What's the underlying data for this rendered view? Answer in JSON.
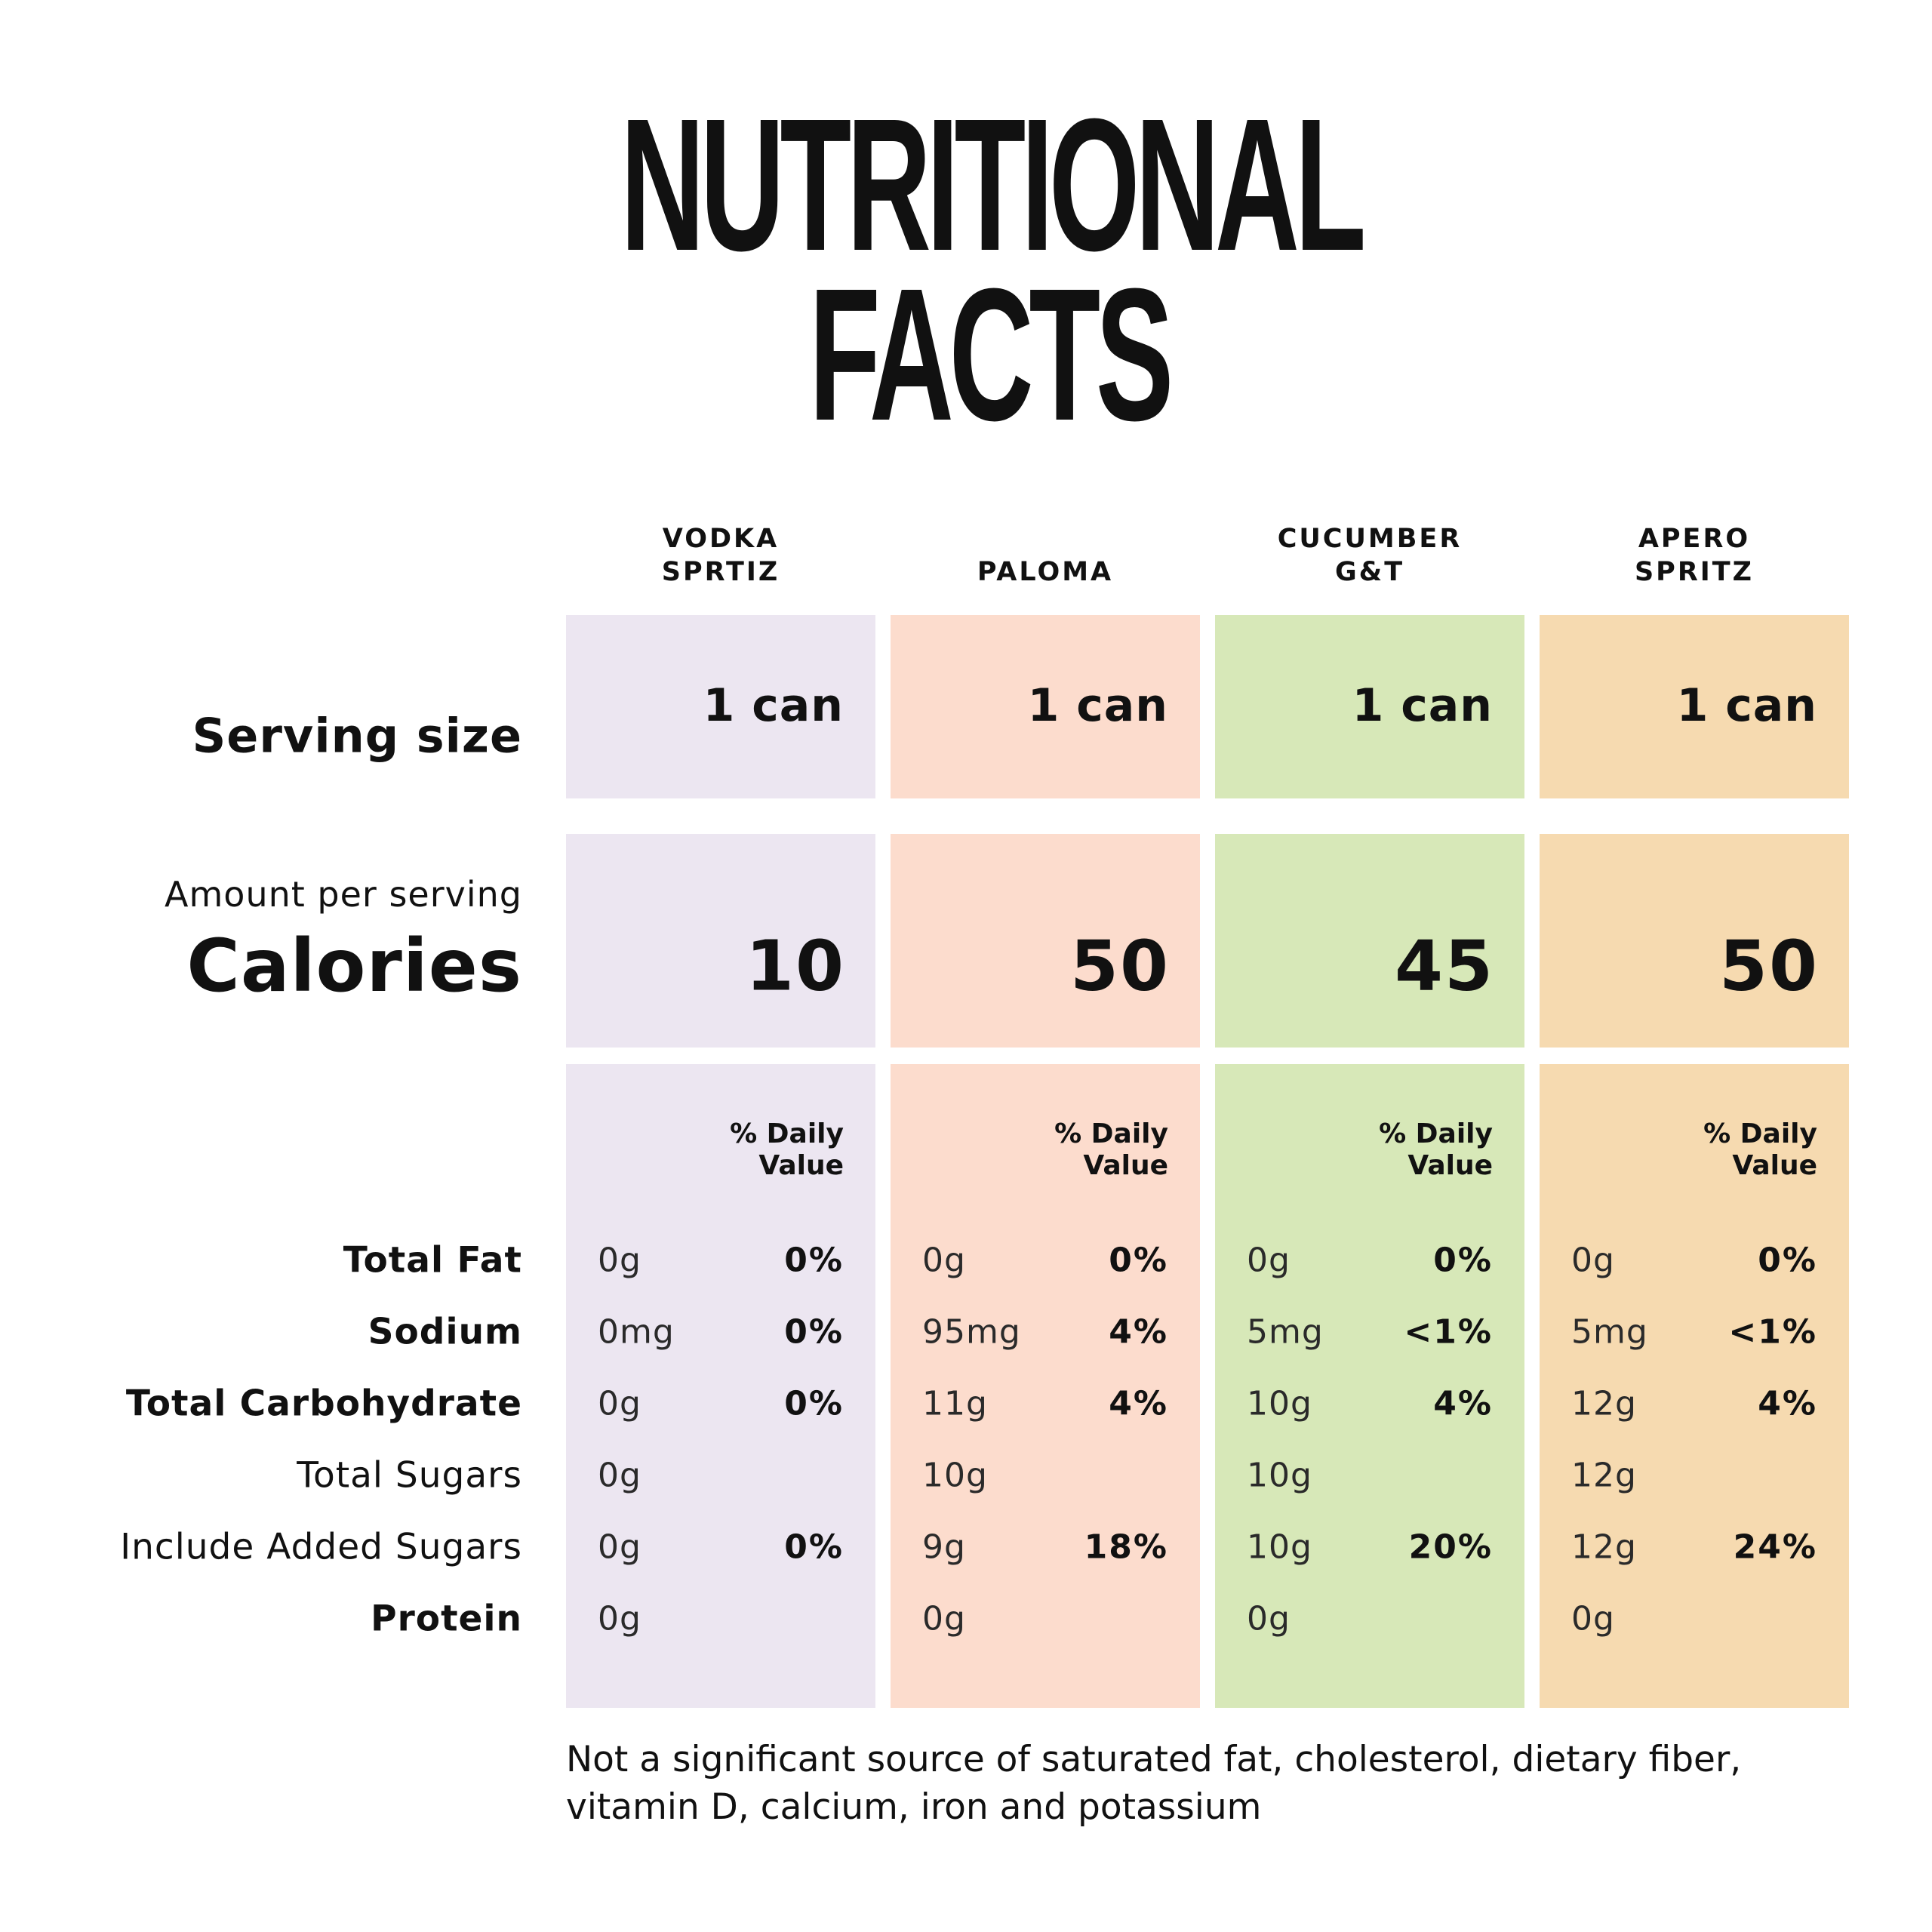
{
  "title": {
    "line1": "NUTRITIONAL",
    "line2": "FACTS"
  },
  "labels": {
    "serving_size": "Serving size",
    "amount_per_serving": "Amount per serving",
    "calories": "Calories"
  },
  "nutrients": [
    {
      "label": "Total Fat",
      "weight": "bold"
    },
    {
      "label": "Sodium",
      "weight": "bold"
    },
    {
      "label": "Total Carbohydrate",
      "weight": "bold"
    },
    {
      "label": "Total Sugars",
      "weight": "regular"
    },
    {
      "label": "Include Added Sugars",
      "weight": "regular"
    },
    {
      "label": "Protein",
      "weight": "bold"
    }
  ],
  "columns": [
    {
      "name_line1": "VODKA",
      "name_line2": "SPRTIZ",
      "color": "#ece6f1",
      "serving": "1 can",
      "calories": "10",
      "dv_header_line1": "% Daily",
      "dv_header_line2": "Value",
      "rows": [
        {
          "amount": "0g",
          "percent": "0%"
        },
        {
          "amount": "0mg",
          "percent": "0%"
        },
        {
          "amount": "0g",
          "percent": "0%"
        },
        {
          "amount": "0g",
          "percent": ""
        },
        {
          "amount": "0g",
          "percent": "0%"
        },
        {
          "amount": "0g",
          "percent": ""
        }
      ]
    },
    {
      "name_line1": "",
      "name_line2": "PALOMA",
      "color": "#fcdccd",
      "serving": "1 can",
      "calories": "50",
      "dv_header_line1": "% Daily",
      "dv_header_line2": "Value",
      "rows": [
        {
          "amount": "0g",
          "percent": "0%"
        },
        {
          "amount": "95mg",
          "percent": "4%"
        },
        {
          "amount": "11g",
          "percent": "4%"
        },
        {
          "amount": "10g",
          "percent": ""
        },
        {
          "amount": "9g",
          "percent": "18%"
        },
        {
          "amount": "0g",
          "percent": ""
        }
      ]
    },
    {
      "name_line1": "CUCUMBER",
      "name_line2": "G&T",
      "color": "#d7e8b8",
      "serving": "1 can",
      "calories": "45",
      "dv_header_line1": "% Daily",
      "dv_header_line2": "Value",
      "rows": [
        {
          "amount": "0g",
          "percent": "0%"
        },
        {
          "amount": "5mg",
          "percent": "<1%"
        },
        {
          "amount": "10g",
          "percent": "4%"
        },
        {
          "amount": "10g",
          "percent": ""
        },
        {
          "amount": "10g",
          "percent": "20%"
        },
        {
          "amount": "0g",
          "percent": ""
        }
      ]
    },
    {
      "name_line1": "APERO",
      "name_line2": "SPRITZ",
      "color": "#f6dab0",
      "serving": "1 can",
      "calories": "50",
      "dv_header_line1": "% Daily",
      "dv_header_line2": "Value",
      "rows": [
        {
          "amount": "0g",
          "percent": "0%"
        },
        {
          "amount": "5mg",
          "percent": "<1%"
        },
        {
          "amount": "12g",
          "percent": "4%"
        },
        {
          "amount": "12g",
          "percent": ""
        },
        {
          "amount": "12g",
          "percent": "24%"
        },
        {
          "amount": "0g",
          "percent": ""
        }
      ]
    }
  ],
  "footnote": "Not a significant source of saturated fat, cholesterol, dietary fiber, vitamin D, calcium, iron and potassium"
}
